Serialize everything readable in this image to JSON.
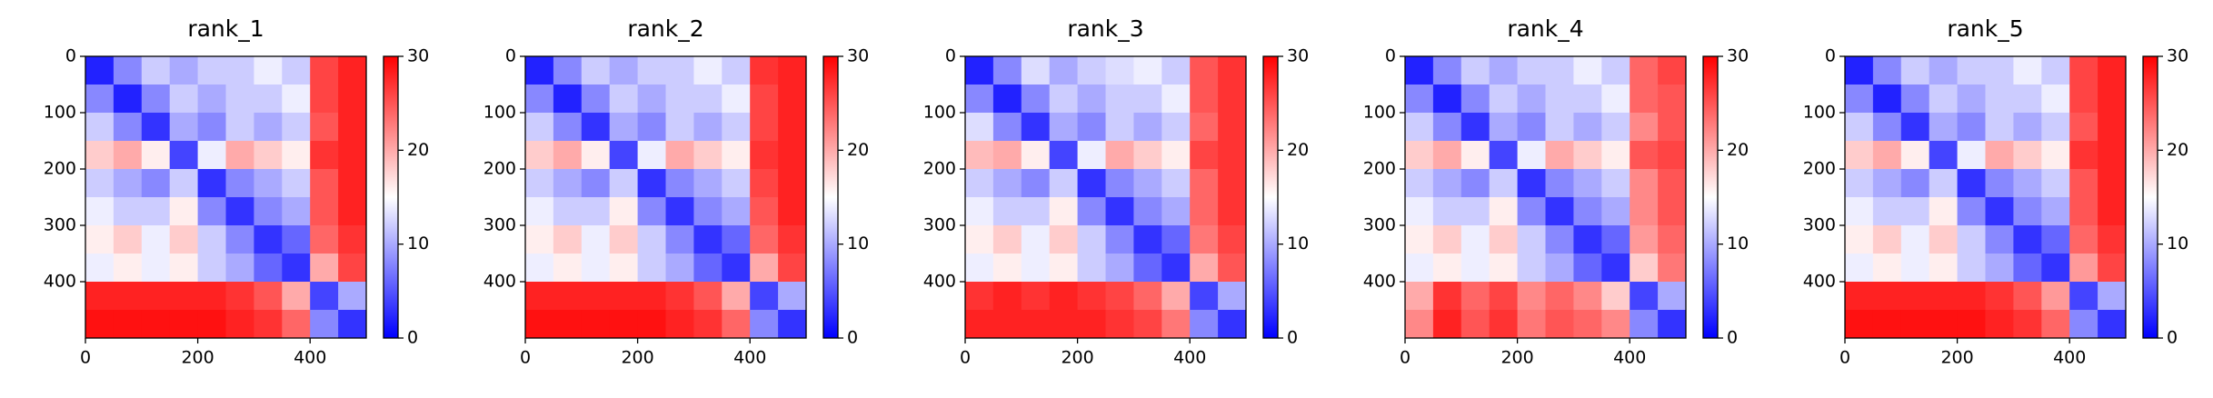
{
  "chart_data": [
    {
      "type": "heatmap",
      "title": "rank_1",
      "colormap": "bwr",
      "xlim": [
        0,
        500
      ],
      "ylim": [
        500,
        0
      ],
      "xticks": [
        0,
        200,
        400
      ],
      "yticks": [
        0,
        100,
        200,
        300,
        400
      ],
      "clim": [
        0,
        30
      ],
      "cticks": [
        0,
        10,
        20,
        30
      ],
      "z": [
        [
          2,
          8,
          12,
          10,
          12,
          12,
          14,
          12,
          26,
          28
        ],
        [
          8,
          2,
          8,
          12,
          10,
          12,
          12,
          14,
          26,
          28
        ],
        [
          12,
          8,
          3,
          10,
          8,
          12,
          10,
          12,
          25,
          28
        ],
        [
          18,
          20,
          16,
          4,
          14,
          20,
          18,
          16,
          27,
          28
        ],
        [
          12,
          10,
          8,
          12,
          3,
          8,
          10,
          12,
          25,
          28
        ],
        [
          14,
          12,
          12,
          16,
          8,
          3,
          8,
          10,
          25,
          28
        ],
        [
          16,
          18,
          14,
          18,
          12,
          8,
          3,
          6,
          24,
          27
        ],
        [
          14,
          16,
          14,
          16,
          12,
          10,
          6,
          3,
          20,
          26
        ],
        [
          28,
          28,
          28,
          28,
          28,
          27,
          25,
          20,
          4,
          10
        ],
        [
          29,
          29,
          29,
          29,
          29,
          28,
          27,
          24,
          8,
          3
        ]
      ]
    },
    {
      "type": "heatmap",
      "title": "rank_2",
      "colormap": "bwr",
      "xlim": [
        0,
        500
      ],
      "ylim": [
        500,
        0
      ],
      "xticks": [
        0,
        200,
        400
      ],
      "yticks": [
        0,
        100,
        200,
        300,
        400
      ],
      "clim": [
        0,
        30
      ],
      "cticks": [
        0,
        10,
        20,
        30
      ],
      "z": [
        [
          2,
          8,
          12,
          10,
          12,
          12,
          14,
          12,
          27,
          28
        ],
        [
          8,
          2,
          8,
          12,
          10,
          12,
          12,
          14,
          26,
          28
        ],
        [
          12,
          8,
          3,
          10,
          8,
          12,
          10,
          12,
          26,
          28
        ],
        [
          18,
          20,
          16,
          4,
          14,
          20,
          18,
          16,
          27,
          28
        ],
        [
          12,
          10,
          8,
          12,
          3,
          8,
          10,
          12,
          26,
          28
        ],
        [
          14,
          12,
          12,
          16,
          8,
          3,
          8,
          10,
          25,
          28
        ],
        [
          16,
          18,
          14,
          18,
          12,
          8,
          3,
          6,
          24,
          27
        ],
        [
          14,
          16,
          14,
          16,
          12,
          10,
          6,
          3,
          20,
          26
        ],
        [
          28,
          28,
          28,
          28,
          28,
          27,
          25,
          20,
          4,
          10
        ],
        [
          29,
          29,
          29,
          29,
          29,
          28,
          27,
          24,
          8,
          3
        ]
      ]
    },
    {
      "type": "heatmap",
      "title": "rank_3",
      "colormap": "bwr",
      "xlim": [
        0,
        500
      ],
      "ylim": [
        500,
        0
      ],
      "xticks": [
        0,
        200,
        400
      ],
      "yticks": [
        0,
        100,
        200,
        300,
        400
      ],
      "clim": [
        0,
        30
      ],
      "cticks": [
        0,
        10,
        20,
        30
      ],
      "z": [
        [
          2,
          8,
          13,
          10,
          12,
          13,
          14,
          12,
          25,
          27
        ],
        [
          8,
          2,
          8,
          12,
          10,
          12,
          12,
          14,
          25,
          27
        ],
        [
          13,
          8,
          3,
          10,
          8,
          12,
          10,
          12,
          24,
          27
        ],
        [
          19,
          20,
          16,
          4,
          14,
          20,
          18,
          16,
          26,
          27
        ],
        [
          12,
          10,
          8,
          12,
          3,
          8,
          10,
          12,
          24,
          27
        ],
        [
          14,
          12,
          12,
          16,
          8,
          3,
          8,
          10,
          24,
          27
        ],
        [
          16,
          18,
          14,
          18,
          12,
          8,
          3,
          6,
          23,
          26
        ],
        [
          14,
          16,
          14,
          16,
          12,
          10,
          6,
          3,
          20,
          25
        ],
        [
          27,
          28,
          27,
          28,
          27,
          26,
          24,
          20,
          4,
          10
        ],
        [
          28,
          28,
          28,
          28,
          28,
          27,
          26,
          23,
          8,
          3
        ]
      ]
    },
    {
      "type": "heatmap",
      "title": "rank_4",
      "colormap": "bwr",
      "xlim": [
        0,
        500
      ],
      "ylim": [
        500,
        0
      ],
      "xticks": [
        0,
        200,
        400
      ],
      "yticks": [
        0,
        100,
        200,
        300,
        400
      ],
      "clim": [
        0,
        30
      ],
      "cticks": [
        0,
        10,
        20,
        30
      ],
      "z": [
        [
          2,
          8,
          12,
          10,
          12,
          12,
          14,
          12,
          24,
          26
        ],
        [
          8,
          2,
          8,
          12,
          10,
          12,
          12,
          14,
          24,
          25
        ],
        [
          12,
          8,
          3,
          10,
          8,
          12,
          10,
          12,
          22,
          25
        ],
        [
          18,
          20,
          16,
          4,
          14,
          20,
          18,
          16,
          25,
          26
        ],
        [
          12,
          10,
          8,
          12,
          3,
          8,
          10,
          12,
          22,
          25
        ],
        [
          14,
          12,
          12,
          16,
          8,
          3,
          8,
          10,
          22,
          25
        ],
        [
          16,
          18,
          14,
          18,
          12,
          8,
          3,
          6,
          21,
          24
        ],
        [
          14,
          16,
          14,
          16,
          12,
          10,
          6,
          3,
          18,
          23
        ],
        [
          20,
          27,
          24,
          26,
          22,
          24,
          22,
          18,
          4,
          10
        ],
        [
          22,
          28,
          25,
          27,
          23,
          25,
          24,
          22,
          8,
          3
        ]
      ]
    },
    {
      "type": "heatmap",
      "title": "rank_5",
      "colormap": "bwr",
      "xlim": [
        0,
        500
      ],
      "ylim": [
        500,
        0
      ],
      "xticks": [
        0,
        200,
        400
      ],
      "yticks": [
        0,
        100,
        200,
        300,
        400
      ],
      "clim": [
        0,
        30
      ],
      "cticks": [
        0,
        10,
        20,
        30
      ],
      "z": [
        [
          2,
          8,
          12,
          10,
          12,
          12,
          14,
          12,
          26,
          28
        ],
        [
          8,
          2,
          8,
          12,
          10,
          12,
          12,
          14,
          26,
          28
        ],
        [
          12,
          8,
          3,
          10,
          8,
          12,
          10,
          12,
          25,
          28
        ],
        [
          18,
          20,
          16,
          4,
          14,
          20,
          18,
          16,
          27,
          28
        ],
        [
          12,
          10,
          8,
          12,
          3,
          8,
          10,
          12,
          25,
          28
        ],
        [
          14,
          12,
          12,
          16,
          8,
          3,
          8,
          10,
          25,
          28
        ],
        [
          16,
          18,
          14,
          18,
          12,
          8,
          3,
          6,
          24,
          27
        ],
        [
          14,
          16,
          14,
          16,
          12,
          10,
          6,
          3,
          21,
          26
        ],
        [
          28,
          28,
          28,
          28,
          28,
          27,
          25,
          21,
          4,
          10
        ],
        [
          29,
          29,
          29,
          29,
          29,
          28,
          27,
          24,
          8,
          3
        ]
      ]
    }
  ]
}
